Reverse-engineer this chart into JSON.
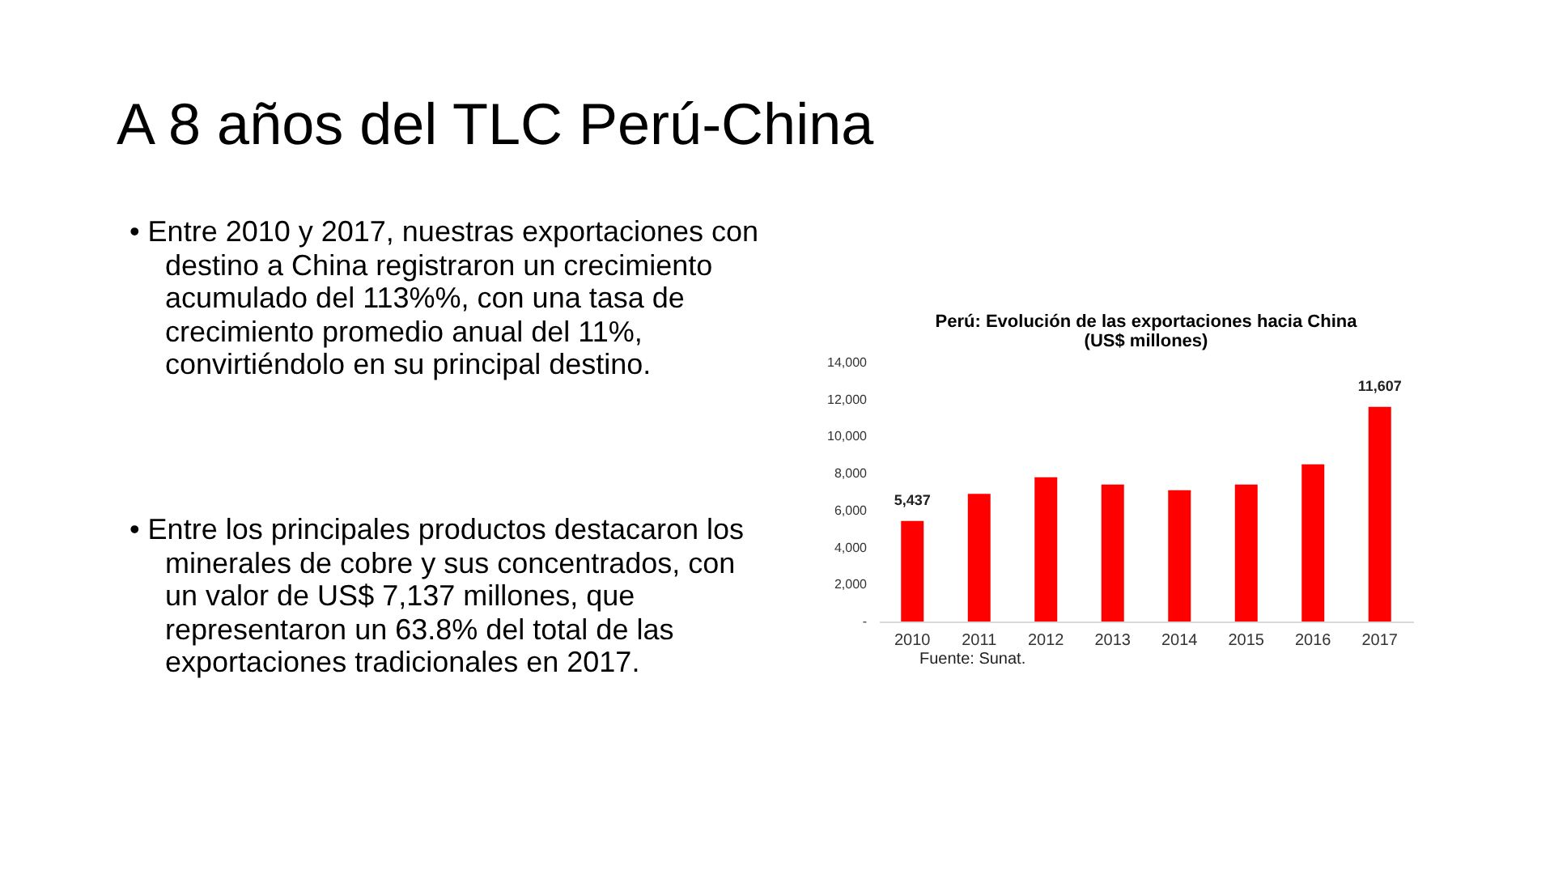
{
  "chart_data": {
    "type": "bar",
    "title": "Perú: Evolución de las exportaciones hacia China",
    "subtitle": "(US$ millones)",
    "categories": [
      "2010",
      "2011",
      "2012",
      "2013",
      "2014",
      "2015",
      "2016",
      "2017"
    ],
    "values": [
      5437,
      6900,
      7800,
      7400,
      7100,
      7400,
      8500,
      11607
    ],
    "value_labels": [
      "5,437",
      null,
      null,
      null,
      null,
      null,
      null,
      "11,607"
    ],
    "color": "#ff0000",
    "ylim": [
      0,
      14000
    ],
    "yticks": [
      {
        "value": 0,
        "label": "-"
      },
      {
        "value": 2000,
        "label": "2,000"
      },
      {
        "value": 4000,
        "label": "4,000"
      },
      {
        "value": 6000,
        "label": "6,000"
      },
      {
        "value": 8000,
        "label": "8,000"
      },
      {
        "value": 10000,
        "label": "10,000"
      },
      {
        "value": 12000,
        "label": "12,000"
      },
      {
        "value": 14000,
        "label": "14,000"
      }
    ],
    "grid": false,
    "annotations": [
      "A 8 años del TLC Perú-China",
      "• Entre 2010 y 2017, nuestras exportaciones con destino a China registraron un crecimiento acumulado del 113%%, con una tasa de crecimiento promedio anual del 11%, convirtiéndolo en su principal destino.",
      "• Entre los principales productos destacaron los minerales de cobre y sus concentrados, con un valor de US$ 7,137 millones, que representaron un 63.8% del total de las exportaciones tradicionales en 2017.",
      "Fuente: Sunat."
    ]
  }
}
